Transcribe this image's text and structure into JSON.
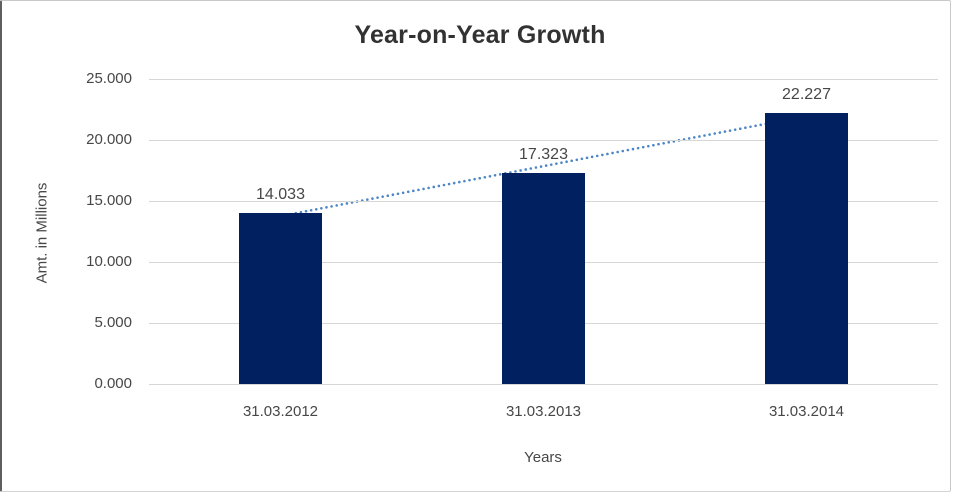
{
  "chart_data": {
    "type": "bar",
    "title": "Year-on-Year Growth",
    "xlabel": "Years",
    "ylabel": "Amt. in Millions",
    "categories": [
      "31.03.2012",
      "31.03.2013",
      "31.03.2014"
    ],
    "values": [
      14.033,
      17.323,
      22.227
    ],
    "data_labels": [
      "14.033",
      "17.323",
      "22.227"
    ],
    "ylim": [
      0,
      25
    ],
    "ytick_labels": [
      "0.000",
      "5.000",
      "10.000",
      "15.000",
      "20.000",
      "25.000"
    ],
    "grid": true,
    "legend": "none",
    "bar_color": "#002060",
    "gridline_color": "#d6d6d6",
    "label_color": "#474747",
    "title_color": "#323232",
    "trendline": {
      "type": "linear",
      "style": "dotted",
      "color": "#4c86c6"
    }
  }
}
